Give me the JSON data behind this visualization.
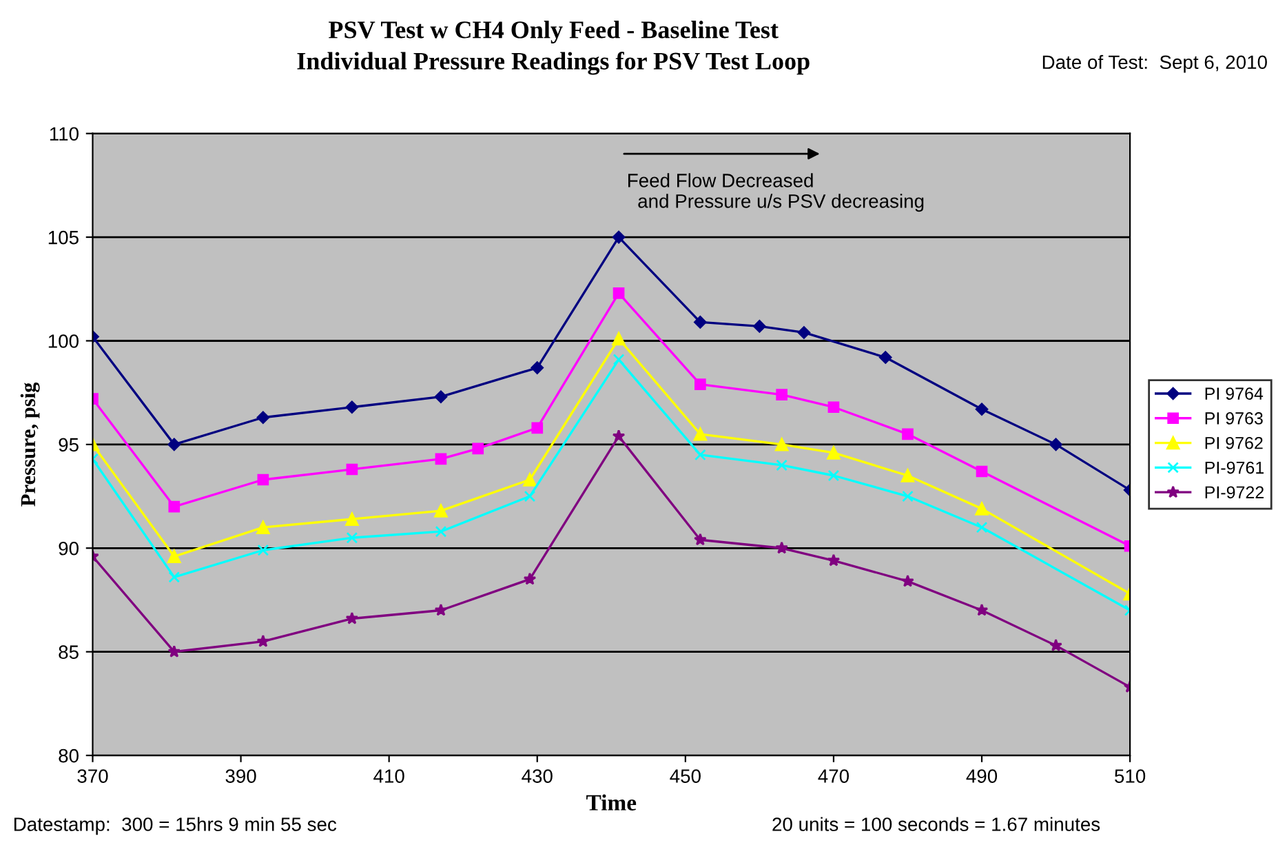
{
  "chart_data": {
    "type": "line",
    "title": "PSV Test w CH4 Only Feed - Baseline Test",
    "subtitle": "Individual Pressure Readings for PSV Test Loop",
    "xlabel": "Time",
    "ylabel": "Pressure, psig",
    "xlim": [
      370,
      510
    ],
    "xticks": [
      370,
      390,
      410,
      430,
      450,
      470,
      490,
      510
    ],
    "ylim": [
      80,
      110
    ],
    "yticks": [
      80,
      85,
      90,
      95,
      100,
      105,
      110
    ],
    "grid": "y",
    "legend": "right",
    "line_style": "solid",
    "annotations": [
      "Date of Test:  Sept 6, 2010",
      "Feed Flow Decreased\n  and Pressure u/s PSV decreasing",
      "Datestamp:  300 = 15hrs 9 min 55 sec",
      "20 units = 100 seconds = 1.67 minutes"
    ],
    "series": [
      {
        "name": "PI 9764",
        "color": "#000080",
        "marker": "diamond",
        "x": [
          370,
          381,
          393,
          405,
          417,
          430,
          441,
          452,
          460,
          466,
          477,
          490,
          500,
          510
        ],
        "values": [
          100.2,
          95,
          96.3,
          96.8,
          97.3,
          98.7,
          105,
          100.9,
          100.7,
          100.4,
          99.2,
          96.7,
          95.0,
          92.8
        ]
      },
      {
        "name": "PI 9763",
        "color": "#ff00ff",
        "marker": "square",
        "x": [
          370,
          381,
          393,
          405,
          417,
          422,
          430,
          441,
          452,
          463,
          470,
          480,
          490,
          510
        ],
        "values": [
          97.2,
          92,
          93.3,
          93.8,
          94.3,
          94.8,
          95.8,
          102.3,
          97.9,
          97.4,
          96.8,
          95.5,
          93.7,
          90.1
        ]
      },
      {
        "name": "PI 9762",
        "color": "#ffff00",
        "marker": "triangle",
        "x": [
          370,
          381,
          393,
          405,
          417,
          429,
          441,
          452,
          463,
          470,
          480,
          490,
          510
        ],
        "values": [
          95,
          89.6,
          91,
          91.4,
          91.8,
          93.3,
          100.1,
          95.5,
          95,
          94.6,
          93.5,
          91.9,
          87.8
        ]
      },
      {
        "name": "PI-9761",
        "color": "#00ffff",
        "marker": "cross",
        "x": [
          370,
          381,
          393,
          405,
          417,
          429,
          441,
          452,
          463,
          470,
          480,
          490,
          510
        ],
        "values": [
          94.3,
          88.6,
          89.9,
          90.5,
          90.8,
          92.5,
          99.1,
          94.5,
          94.0,
          93.5,
          92.5,
          91,
          87.0
        ]
      },
      {
        "name": "PI-9722",
        "color": "#800080",
        "marker": "star",
        "x": [
          370,
          381,
          393,
          405,
          417,
          429,
          441,
          452,
          463,
          470,
          480,
          490,
          500,
          510
        ],
        "values": [
          89.6,
          85,
          85.5,
          86.6,
          87,
          88.5,
          95.4,
          90.4,
          90,
          89.4,
          88.4,
          87,
          85.3,
          83.3
        ]
      }
    ]
  }
}
